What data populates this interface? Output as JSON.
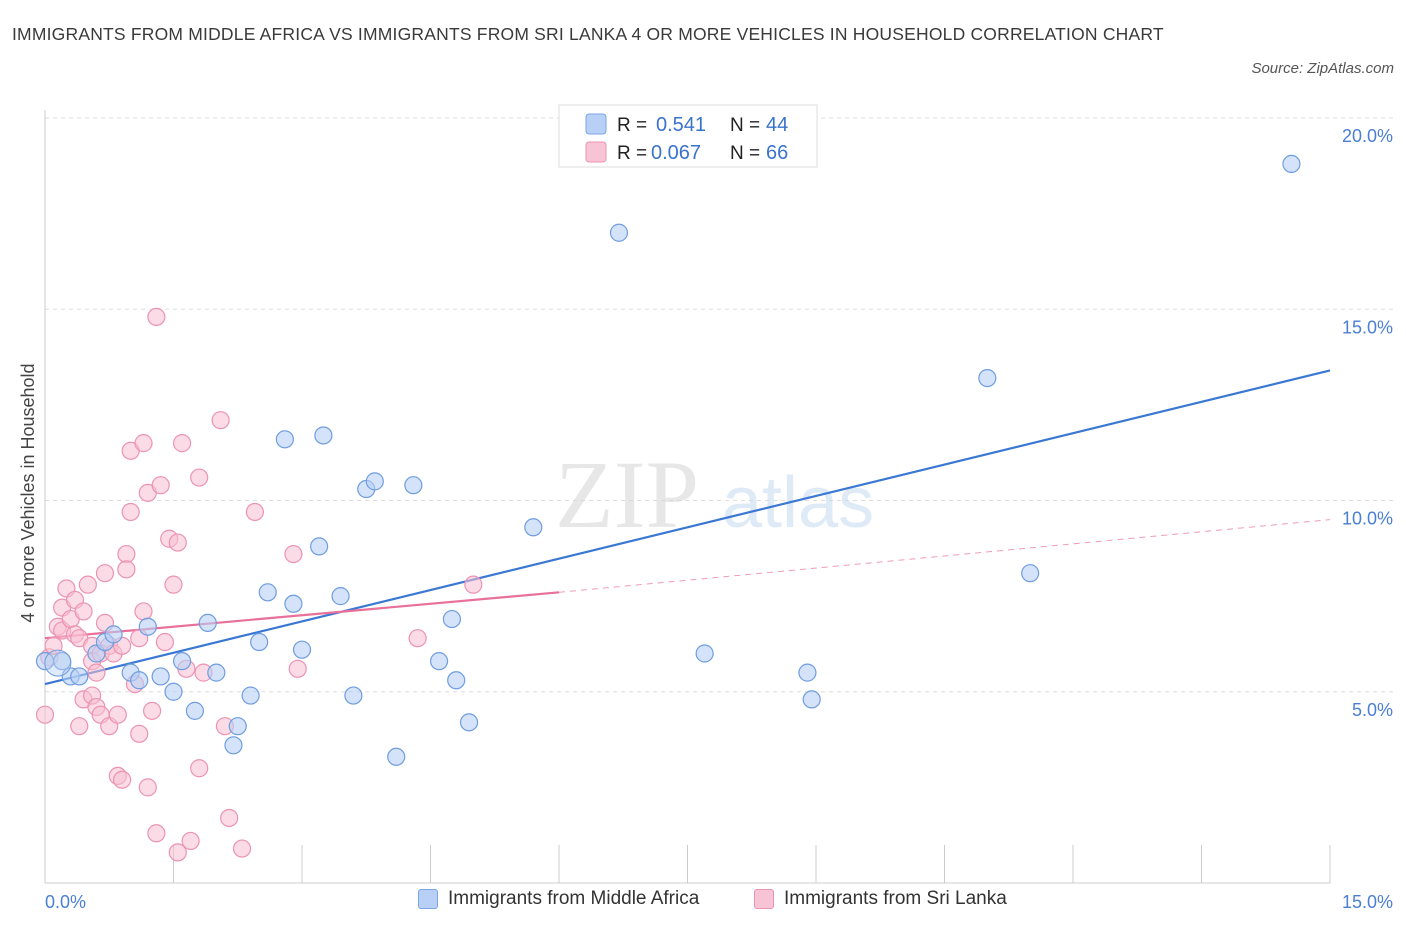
{
  "title": "IMMIGRANTS FROM MIDDLE AFRICA VS IMMIGRANTS FROM SRI LANKA 4 OR MORE VEHICLES IN HOUSEHOLD CORRELATION CHART",
  "source": "Source: ZipAtlas.com",
  "watermark": {
    "zip": "ZIP",
    "atlas": "atlas"
  },
  "legend_top": {
    "rows": [
      {
        "r_label": "R =",
        "r_value": "0.541",
        "n_label": "N =",
        "n_value": "44"
      },
      {
        "r_label": "R =",
        "r_value": "0.067",
        "n_label": "N =",
        "n_value": "66"
      }
    ]
  },
  "legend_bottom": {
    "items": [
      {
        "label": "Immigrants from Middle Africa"
      },
      {
        "label": "Immigrants from Sri Lanka"
      }
    ]
  },
  "colors": {
    "blue": "#3a78d4",
    "blue_fill": "#b8d0f5",
    "pink": "#e8709a",
    "pink_fill": "#f7bfd2",
    "grid": "#dddddd",
    "tick_text": "#4a7fd4"
  },
  "chart_data": {
    "type": "scatter",
    "title": "IMMIGRANTS FROM MIDDLE AFRICA VS IMMIGRANTS FROM SRI LANKA 4 OR MORE VEHICLES IN HOUSEHOLD CORRELATION CHART",
    "xlabel": "",
    "ylabel": "4 or more Vehicles in Household",
    "xlim": [
      0,
      15
    ],
    "ylim": [
      0,
      20
    ],
    "x_tick_labels": [
      "0.0%",
      "15.0%"
    ],
    "y_ticks": [
      5,
      10,
      15,
      20
    ],
    "y_tick_labels": [
      "5.0%",
      "10.0%",
      "15.0%",
      "20.0%"
    ],
    "grid": true,
    "legend_position": "top-center",
    "series": [
      {
        "name": "Immigrants from Middle Africa",
        "R": 0.541,
        "N": 44,
        "trend": {
          "x": [
            0,
            15
          ],
          "y": [
            5.2,
            13.4
          ]
        },
        "points": [
          [
            0.0,
            5.8
          ],
          [
            0.2,
            5.8
          ],
          [
            0.3,
            5.4
          ],
          [
            0.4,
            5.4
          ],
          [
            0.6,
            6.0
          ],
          [
            0.7,
            6.3
          ],
          [
            0.8,
            6.5
          ],
          [
            1.0,
            5.5
          ],
          [
            1.1,
            5.3
          ],
          [
            1.2,
            6.7
          ],
          [
            1.35,
            5.4
          ],
          [
            1.5,
            5.0
          ],
          [
            1.6,
            5.8
          ],
          [
            1.75,
            4.5
          ],
          [
            1.9,
            6.8
          ],
          [
            2.0,
            5.5
          ],
          [
            2.2,
            3.6
          ],
          [
            2.25,
            4.1
          ],
          [
            2.4,
            4.9
          ],
          [
            2.5,
            6.3
          ],
          [
            2.6,
            7.6
          ],
          [
            2.8,
            11.6
          ],
          [
            2.9,
            7.3
          ],
          [
            3.0,
            6.1
          ],
          [
            3.2,
            8.8
          ],
          [
            3.25,
            11.7
          ],
          [
            3.45,
            7.5
          ],
          [
            3.6,
            4.9
          ],
          [
            3.75,
            10.3
          ],
          [
            3.85,
            10.5
          ],
          [
            4.1,
            3.3
          ],
          [
            4.3,
            10.4
          ],
          [
            4.6,
            5.8
          ],
          [
            4.75,
            6.9
          ],
          [
            4.8,
            5.3
          ],
          [
            4.95,
            4.2
          ],
          [
            5.7,
            9.3
          ],
          [
            6.7,
            17.0
          ],
          [
            7.7,
            6.0
          ],
          [
            8.9,
            5.5
          ],
          [
            8.95,
            4.8
          ],
          [
            11.0,
            13.2
          ],
          [
            11.5,
            8.1
          ],
          [
            14.55,
            18.8
          ]
        ]
      },
      {
        "name": "Immigrants from Sri Lanka",
        "R": 0.067,
        "N": 66,
        "trend": {
          "x": [
            0,
            6
          ],
          "y": [
            6.4,
            7.6
          ],
          "dashed_extension": {
            "x": [
              6,
              15
            ],
            "y": [
              7.6,
              9.5
            ]
          }
        },
        "points": [
          [
            0.0,
            4.4
          ],
          [
            0.05,
            5.9
          ],
          [
            0.1,
            6.2
          ],
          [
            0.15,
            6.7
          ],
          [
            0.2,
            7.2
          ],
          [
            0.2,
            6.6
          ],
          [
            0.25,
            7.7
          ],
          [
            0.3,
            6.9
          ],
          [
            0.35,
            6.5
          ],
          [
            0.35,
            7.4
          ],
          [
            0.4,
            6.4
          ],
          [
            0.4,
            4.1
          ],
          [
            0.45,
            4.8
          ],
          [
            0.45,
            7.1
          ],
          [
            0.5,
            7.8
          ],
          [
            0.55,
            6.2
          ],
          [
            0.55,
            5.8
          ],
          [
            0.55,
            4.9
          ],
          [
            0.6,
            4.6
          ],
          [
            0.6,
            5.5
          ],
          [
            0.65,
            4.4
          ],
          [
            0.65,
            6.0
          ],
          [
            0.7,
            8.1
          ],
          [
            0.7,
            6.8
          ],
          [
            0.75,
            6.2
          ],
          [
            0.75,
            4.1
          ],
          [
            0.8,
            6.0
          ],
          [
            0.85,
            4.4
          ],
          [
            0.85,
            2.8
          ],
          [
            0.9,
            2.7
          ],
          [
            0.9,
            6.2
          ],
          [
            0.95,
            8.6
          ],
          [
            0.95,
            8.2
          ],
          [
            1.0,
            11.3
          ],
          [
            1.0,
            9.7
          ],
          [
            1.05,
            5.2
          ],
          [
            1.1,
            3.9
          ],
          [
            1.1,
            6.4
          ],
          [
            1.15,
            11.5
          ],
          [
            1.2,
            10.2
          ],
          [
            1.25,
            4.5
          ],
          [
            1.3,
            14.8
          ],
          [
            1.3,
            1.3
          ],
          [
            1.35,
            10.4
          ],
          [
            1.4,
            6.3
          ],
          [
            1.45,
            9.0
          ],
          [
            1.5,
            7.8
          ],
          [
            1.55,
            0.8
          ],
          [
            1.55,
            8.9
          ],
          [
            1.6,
            11.5
          ],
          [
            1.65,
            5.6
          ],
          [
            1.7,
            1.1
          ],
          [
            1.8,
            3.0
          ],
          [
            1.8,
            10.6
          ],
          [
            1.85,
            5.5
          ],
          [
            2.05,
            12.1
          ],
          [
            2.1,
            4.1
          ],
          [
            2.15,
            1.7
          ],
          [
            2.3,
            0.9
          ],
          [
            2.45,
            9.7
          ],
          [
            2.9,
            8.6
          ],
          [
            2.95,
            5.6
          ],
          [
            4.35,
            6.4
          ],
          [
            5.0,
            7.8
          ],
          [
            1.2,
            2.5
          ],
          [
            1.15,
            7.1
          ]
        ]
      }
    ]
  }
}
